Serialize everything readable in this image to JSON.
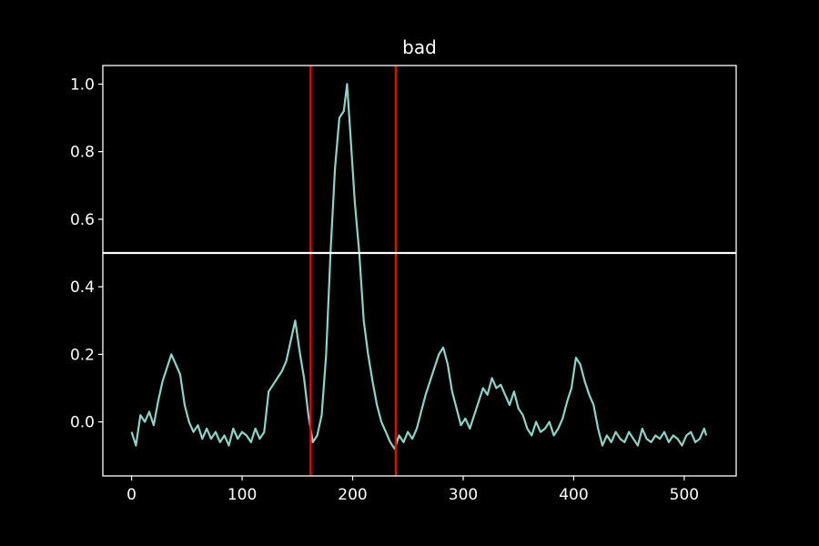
{
  "chart_data": {
    "type": "line",
    "title": "bad",
    "xlabel": "",
    "ylabel": "",
    "xlim": [
      -26,
      547
    ],
    "ylim": [
      -0.16,
      1.055
    ],
    "x_ticks": [
      0,
      100,
      200,
      300,
      400,
      500
    ],
    "x_tick_labels": [
      "0",
      "100",
      "200",
      "300",
      "400",
      "500"
    ],
    "y_ticks": [
      0.0,
      0.2,
      0.4,
      0.6,
      0.8,
      1.0
    ],
    "y_tick_labels": [
      "0.0",
      "0.2",
      "0.4",
      "0.6",
      "0.8",
      "1.0"
    ],
    "grid": false,
    "colors": {
      "background": "#000000",
      "axes": "#ffffff",
      "series": "#8dd3c7",
      "vertical_lines": "#ff0000",
      "threshold": "#ffffff"
    },
    "vertical_lines": [
      162,
      239
    ],
    "horizontal_lines": [
      0.5
    ],
    "series": [
      {
        "x": [
          0,
          4,
          8,
          12,
          16,
          20,
          24,
          28,
          32,
          36,
          40,
          44,
          48,
          52,
          56,
          60,
          64,
          68,
          72,
          76,
          80,
          84,
          88,
          92,
          96,
          100,
          104,
          108,
          112,
          116,
          120,
          124,
          128,
          132,
          136,
          140,
          144,
          148,
          152,
          156,
          160,
          164,
          168,
          172,
          176,
          180,
          184,
          188,
          192,
          195,
          198,
          202,
          206,
          210,
          214,
          218,
          222,
          226,
          230,
          234,
          238,
          242,
          246,
          250,
          254,
          258,
          262,
          266,
          270,
          274,
          278,
          282,
          286,
          290,
          294,
          298,
          302,
          306,
          310,
          314,
          318,
          322,
          326,
          330,
          334,
          338,
          342,
          346,
          350,
          354,
          358,
          362,
          366,
          370,
          374,
          378,
          382,
          386,
          390,
          394,
          398,
          402,
          406,
          410,
          414,
          418,
          422,
          426,
          430,
          434,
          438,
          442,
          446,
          450,
          454,
          458,
          462,
          466,
          470,
          474,
          478,
          482,
          486,
          490,
          494,
          498,
          502,
          506,
          510,
          514,
          518,
          520
        ],
        "y": [
          -0.03,
          -0.07,
          0.02,
          0.0,
          0.03,
          -0.01,
          0.06,
          0.12,
          0.16,
          0.2,
          0.17,
          0.14,
          0.05,
          0.0,
          -0.03,
          -0.01,
          -0.05,
          -0.02,
          -0.05,
          -0.03,
          -0.06,
          -0.04,
          -0.07,
          -0.02,
          -0.05,
          -0.03,
          -0.04,
          -0.06,
          -0.02,
          -0.05,
          -0.03,
          0.09,
          0.11,
          0.13,
          0.15,
          0.18,
          0.24,
          0.3,
          0.21,
          0.13,
          0.02,
          -0.06,
          -0.04,
          0.02,
          0.2,
          0.5,
          0.75,
          0.9,
          0.92,
          1.0,
          0.85,
          0.65,
          0.5,
          0.3,
          0.2,
          0.12,
          0.05,
          0.0,
          -0.03,
          -0.06,
          -0.08,
          -0.04,
          -0.06,
          -0.03,
          -0.05,
          -0.02,
          0.03,
          0.08,
          0.12,
          0.16,
          0.2,
          0.22,
          0.17,
          0.09,
          0.04,
          -0.01,
          0.01,
          -0.02,
          0.02,
          0.06,
          0.1,
          0.08,
          0.13,
          0.1,
          0.11,
          0.08,
          0.05,
          0.09,
          0.04,
          0.02,
          -0.02,
          -0.04,
          0.0,
          -0.03,
          -0.02,
          0.0,
          -0.04,
          -0.02,
          0.01,
          0.06,
          0.1,
          0.19,
          0.17,
          0.12,
          0.08,
          0.05,
          -0.02,
          -0.07,
          -0.04,
          -0.06,
          -0.03,
          -0.05,
          -0.06,
          -0.03,
          -0.05,
          -0.07,
          -0.02,
          -0.05,
          -0.06,
          -0.04,
          -0.05,
          -0.03,
          -0.06,
          -0.04,
          -0.05,
          -0.07,
          -0.04,
          -0.03,
          -0.06,
          -0.05,
          -0.02,
          -0.04
        ]
      }
    ]
  }
}
